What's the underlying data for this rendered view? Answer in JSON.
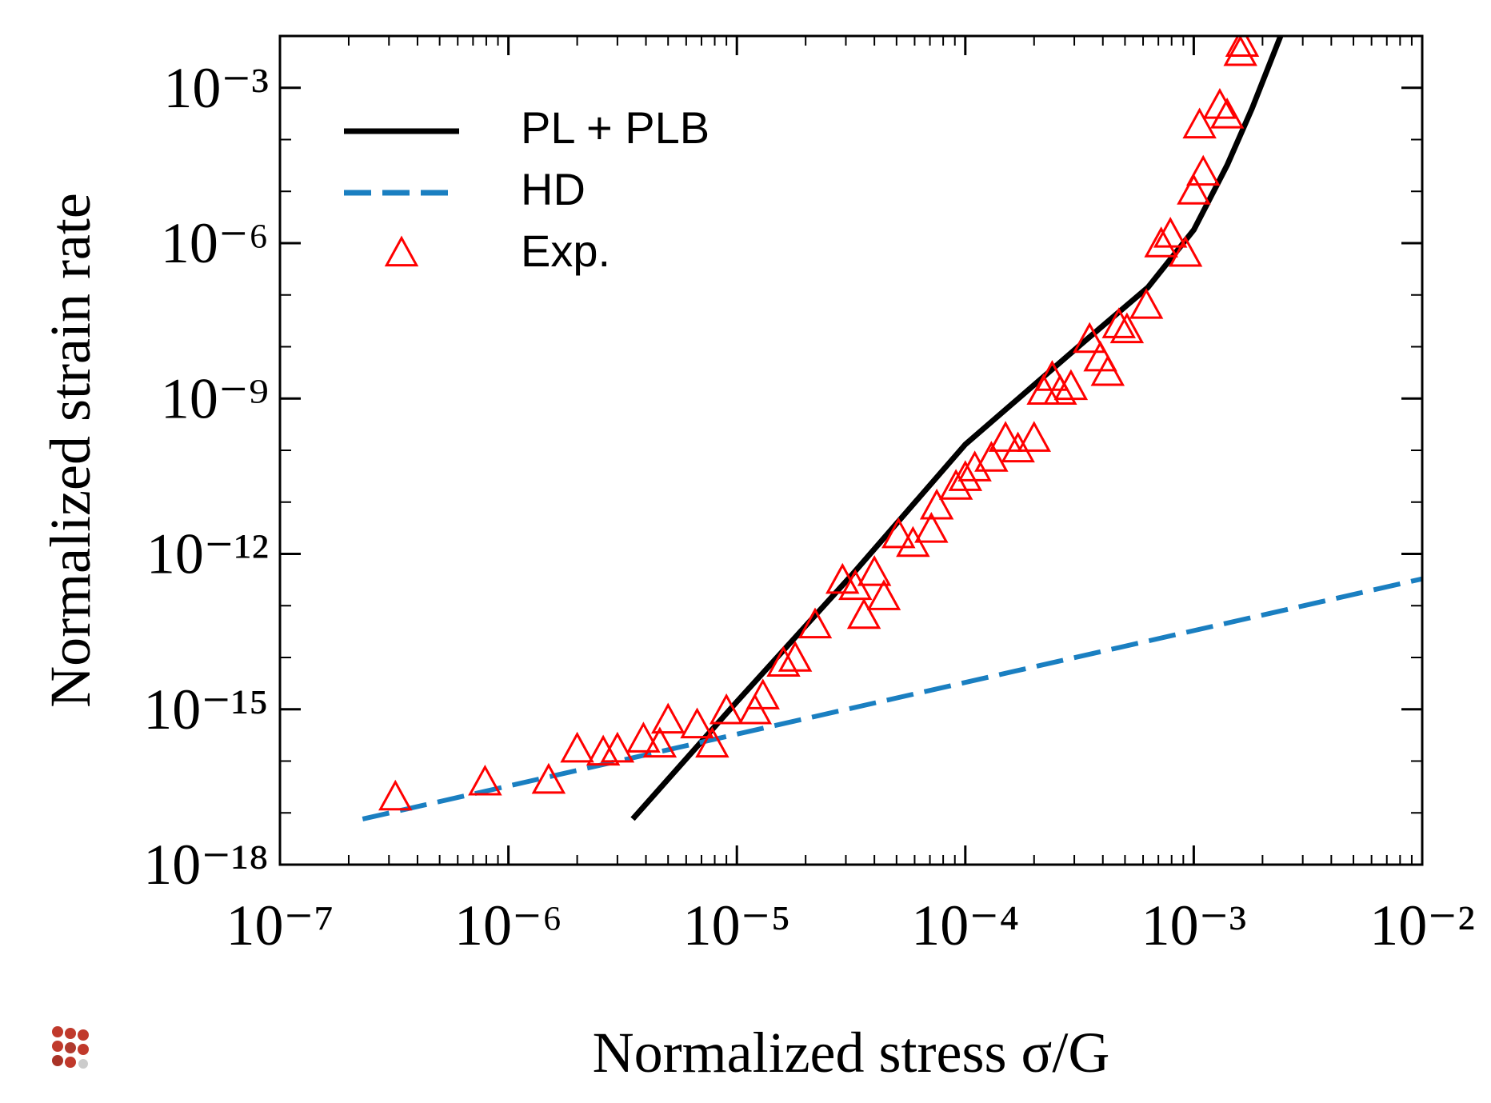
{
  "chart_data": {
    "type": "line",
    "x_label": "Normalized stress  σ/G",
    "y_label": "Normalized strain rate",
    "xscale": "log",
    "yscale": "log",
    "xlim": [
      1e-07,
      0.01
    ],
    "ylim": [
      1e-18,
      0.01
    ],
    "xticks": [
      {
        "value": 1e-07,
        "label": "10⁻⁷"
      },
      {
        "value": 1e-06,
        "label": "10⁻⁶"
      },
      {
        "value": 1e-05,
        "label": "10⁻⁵"
      },
      {
        "value": 0.0001,
        "label": "10⁻⁴"
      },
      {
        "value": 0.001,
        "label": "10⁻³"
      },
      {
        "value": 0.01,
        "label": "10⁻²"
      }
    ],
    "yticks": [
      {
        "value": 1e-18,
        "label": "10⁻¹⁸"
      },
      {
        "value": 1e-15,
        "label": "10⁻¹⁵"
      },
      {
        "value": 1e-12,
        "label": "10⁻¹²"
      },
      {
        "value": 1e-09,
        "label": "10⁻⁹"
      },
      {
        "value": 1e-06,
        "label": "10⁻⁶"
      },
      {
        "value": 0.001,
        "label": "10⁻³"
      }
    ],
    "grid": false,
    "legend": "upper left",
    "series": [
      {
        "name": "PL + PLB",
        "color": "#000000",
        "style": "solid",
        "x": [
          3.5e-06,
          1e-05,
          3.2e-05,
          0.0001,
          0.00032,
          0.00063,
          0.001,
          0.0014,
          0.0018,
          0.0024
        ],
        "values": [
          7.6e-18,
          1.4e-15,
          4e-13,
          1.3e-10,
          1.1e-08,
          1.4e-07,
          1.8e-06,
          3.2e-05,
          0.0004,
          0.01
        ]
      },
      {
        "name": "HD",
        "color": "#1a7fc1",
        "style": "dashed",
        "x": [
          2.3e-07,
          0.01
        ],
        "values": [
          7.6e-18,
          3.3e-13
        ]
      },
      {
        "name": "Exp.",
        "color": "#ff0000",
        "style": "triangles",
        "x": [
          3.2e-07,
          7.9e-07,
          1.5e-06,
          2e-06,
          2.6e-06,
          3e-06,
          3.9e-06,
          4.6e-06,
          5e-06,
          6.7e-06,
          7.8e-06,
          9e-06,
          1.2e-05,
          1.3e-05,
          1.6e-05,
          1.8e-05,
          2.2e-05,
          2.9e-05,
          3.3e-05,
          3.6e-05,
          4e-05,
          4.4e-05,
          5.1e-05,
          5.9e-05,
          7.1e-05,
          7.5e-05,
          9.1e-05,
          0.0001,
          0.00011,
          0.00013,
          0.00015,
          0.00017,
          0.0002,
          0.00022,
          0.00024,
          0.00026,
          0.00029,
          0.00035,
          0.00039,
          0.00042,
          0.00047,
          0.00051,
          0.00062,
          0.00072,
          0.00079,
          0.00092,
          0.001,
          0.0011,
          0.00106,
          0.0013,
          0.0014,
          0.0016,
          0.00163
        ],
        "values": [
          1.9e-17,
          3.7e-17,
          4e-17,
          1.6e-16,
          1.4e-16,
          1.6e-16,
          2.5e-16,
          2e-16,
          5.8e-16,
          4.7e-16,
          2e-16,
          8.8e-16,
          8.8e-16,
          1.7e-15,
          7.3e-15,
          9.1e-15,
          4e-14,
          2.9e-13,
          2.2e-13,
          6.1e-14,
          4.1e-13,
          1.4e-13,
          2.2e-12,
          1.5e-12,
          2.8e-12,
          7.9e-12,
          1.9e-11,
          2.8e-11,
          4.3e-11,
          6.6e-11,
          1.6e-10,
          1e-10,
          1.6e-10,
          1.3e-09,
          2.4e-09,
          1.3e-09,
          1.6e-09,
          1.3e-08,
          5.7e-09,
          3e-09,
          2.5e-08,
          2e-08,
          5.9e-08,
          9.1e-07,
          1.4e-06,
          6e-07,
          9.5e-06,
          2.2e-05,
          0.00018,
          0.00043,
          0.00028,
          0.0045,
          0.0068
        ]
      }
    ]
  }
}
